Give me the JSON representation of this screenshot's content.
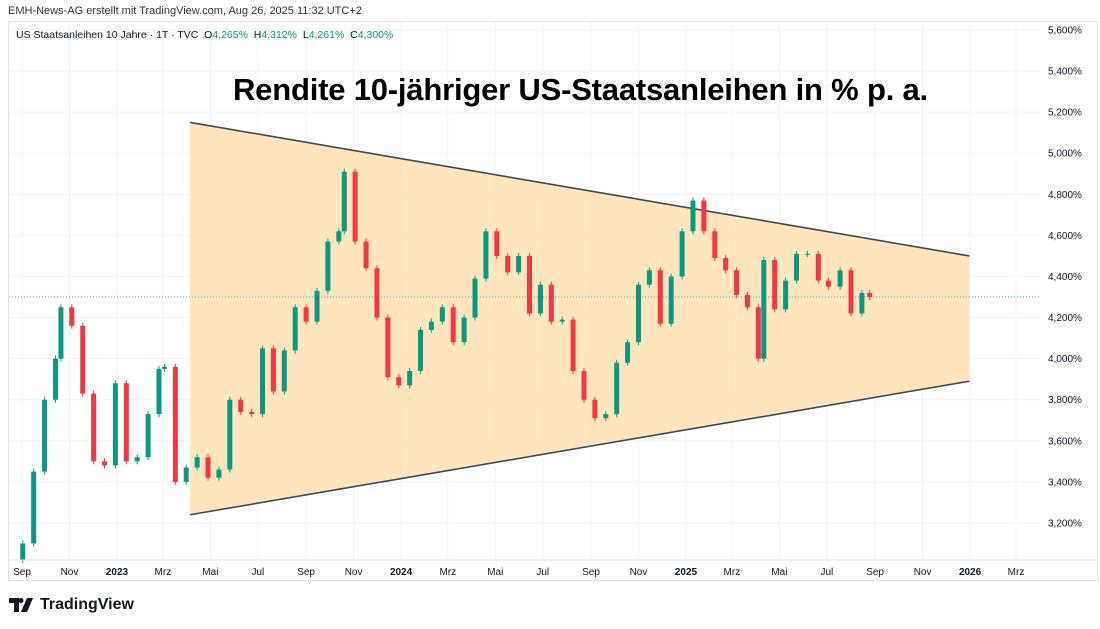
{
  "header": {
    "credit": "EMH-News-AG erstellt mit TradingView.com, Aug 26, 2025 11:32 UTC+2",
    "symbol": "US Staatsanleihen 10 Jahre · 1T · TVC",
    "ohlc": [
      {
        "label": "O",
        "value": "4,265%"
      },
      {
        "label": "H",
        "value": "4,312%"
      },
      {
        "label": "L",
        "value": "4,261%"
      },
      {
        "label": "C",
        "value": "4,300%"
      }
    ]
  },
  "footer": {
    "logo": "TradingView"
  },
  "colors": {
    "up": "#089981",
    "down": "#f23645",
    "triangle_fill": "#ffe0b2",
    "triangle_line": "#434651",
    "grid": "#f0f3fa"
  },
  "chart_data": {
    "type": "candlestick",
    "title": "Rendite 10-jähriger US-Staatsanleihen in % p. a.",
    "ylim": [
      3.0,
      5.65
    ],
    "y_ticks": [
      "5,600%",
      "5,400%",
      "5,200%",
      "5,000%",
      "4,800%",
      "4,600%",
      "4,400%",
      "4,200%",
      "4,000%",
      "3,800%",
      "3,600%",
      "3,400%",
      "3,200%"
    ],
    "y_tick_values": [
      5.6,
      5.4,
      5.2,
      5.0,
      4.8,
      4.6,
      4.4,
      4.2,
      4.0,
      3.8,
      3.6,
      3.4,
      3.2
    ],
    "x_ticks": [
      {
        "label": "Sep",
        "date": "2022-09-01"
      },
      {
        "label": "Nov",
        "date": "2022-11-01"
      },
      {
        "label": "2023",
        "date": "2023-01-01",
        "year": true
      },
      {
        "label": "Mrz",
        "date": "2023-03-01"
      },
      {
        "label": "Mai",
        "date": "2023-05-01"
      },
      {
        "label": "Jul",
        "date": "2023-07-01"
      },
      {
        "label": "Sep",
        "date": "2023-09-01"
      },
      {
        "label": "Nov",
        "date": "2023-11-01"
      },
      {
        "label": "2024",
        "date": "2024-01-01",
        "year": true
      },
      {
        "label": "Mrz",
        "date": "2024-03-01"
      },
      {
        "label": "Mai",
        "date": "2024-05-01"
      },
      {
        "label": "Jul",
        "date": "2024-07-01"
      },
      {
        "label": "Sep",
        "date": "2024-09-01"
      },
      {
        "label": "Nov",
        "date": "2024-11-01"
      },
      {
        "label": "2025",
        "date": "2025-01-01",
        "year": true
      },
      {
        "label": "Mrz",
        "date": "2025-03-01"
      },
      {
        "label": "Mai",
        "date": "2025-05-01"
      },
      {
        "label": "Jul",
        "date": "2025-07-01"
      },
      {
        "label": "Sep",
        "date": "2025-09-01"
      },
      {
        "label": "Nov",
        "date": "2025-11-01"
      },
      {
        "label": "2026",
        "date": "2026-01-01",
        "year": true
      },
      {
        "label": "Mrz",
        "date": "2026-03-01"
      }
    ],
    "closes": [
      [
        "2022-09-02",
        3.1
      ],
      [
        "2022-09-16",
        3.45
      ],
      [
        "2022-09-30",
        3.8
      ],
      [
        "2022-10-14",
        4.0
      ],
      [
        "2022-10-21",
        4.25
      ],
      [
        "2022-11-04",
        4.16
      ],
      [
        "2022-11-18",
        3.83
      ],
      [
        "2022-12-02",
        3.5
      ],
      [
        "2022-12-16",
        3.48
      ],
      [
        "2022-12-30",
        3.88
      ],
      [
        "2023-01-13",
        3.5
      ],
      [
        "2023-01-27",
        3.52
      ],
      [
        "2023-02-10",
        3.73
      ],
      [
        "2023-02-24",
        3.95
      ],
      [
        "2023-03-03",
        3.96
      ],
      [
        "2023-03-17",
        3.4
      ],
      [
        "2023-03-31",
        3.47
      ],
      [
        "2023-04-14",
        3.52
      ],
      [
        "2023-04-28",
        3.42
      ],
      [
        "2023-05-12",
        3.46
      ],
      [
        "2023-05-26",
        3.8
      ],
      [
        "2023-06-09",
        3.74
      ],
      [
        "2023-06-23",
        3.73
      ],
      [
        "2023-07-07",
        4.05
      ],
      [
        "2023-07-21",
        3.84
      ],
      [
        "2023-08-04",
        4.04
      ],
      [
        "2023-08-18",
        4.25
      ],
      [
        "2023-09-01",
        4.18
      ],
      [
        "2023-09-15",
        4.33
      ],
      [
        "2023-09-29",
        4.57
      ],
      [
        "2023-10-13",
        4.62
      ],
      [
        "2023-10-20",
        4.91
      ],
      [
        "2023-11-03",
        4.57
      ],
      [
        "2023-11-17",
        4.44
      ],
      [
        "2023-12-01",
        4.2
      ],
      [
        "2023-12-15",
        3.91
      ],
      [
        "2023-12-29",
        3.87
      ],
      [
        "2024-01-12",
        3.94
      ],
      [
        "2024-01-26",
        4.14
      ],
      [
        "2024-02-09",
        4.18
      ],
      [
        "2024-02-23",
        4.25
      ],
      [
        "2024-03-08",
        4.08
      ],
      [
        "2024-03-22",
        4.2
      ],
      [
        "2024-04-05",
        4.39
      ],
      [
        "2024-04-19",
        4.62
      ],
      [
        "2024-05-03",
        4.5
      ],
      [
        "2024-05-17",
        4.42
      ],
      [
        "2024-05-31",
        4.5
      ],
      [
        "2024-06-14",
        4.22
      ],
      [
        "2024-06-28",
        4.36
      ],
      [
        "2024-07-12",
        4.18
      ],
      [
        "2024-07-26",
        4.19
      ],
      [
        "2024-08-09",
        3.94
      ],
      [
        "2024-08-23",
        3.8
      ],
      [
        "2024-09-06",
        3.71
      ],
      [
        "2024-09-20",
        3.73
      ],
      [
        "2024-10-04",
        3.98
      ],
      [
        "2024-10-18",
        4.08
      ],
      [
        "2024-11-01",
        4.36
      ],
      [
        "2024-11-15",
        4.43
      ],
      [
        "2024-11-29",
        4.17
      ],
      [
        "2024-12-13",
        4.4
      ],
      [
        "2024-12-27",
        4.62
      ],
      [
        "2025-01-10",
        4.77
      ],
      [
        "2025-01-24",
        4.62
      ],
      [
        "2025-02-07",
        4.49
      ],
      [
        "2025-02-21",
        4.43
      ],
      [
        "2025-03-07",
        4.31
      ],
      [
        "2025-03-21",
        4.25
      ],
      [
        "2025-04-04",
        4.0
      ],
      [
        "2025-04-11",
        4.48
      ],
      [
        "2025-04-25",
        4.24
      ],
      [
        "2025-05-09",
        4.38
      ],
      [
        "2025-05-23",
        4.51
      ],
      [
        "2025-06-06",
        4.51
      ],
      [
        "2025-06-20",
        4.38
      ],
      [
        "2025-07-03",
        4.35
      ],
      [
        "2025-07-18",
        4.43
      ],
      [
        "2025-08-01",
        4.22
      ],
      [
        "2025-08-15",
        4.32
      ],
      [
        "2025-08-25",
        4.3
      ]
    ],
    "annotations": {
      "triangle_upper": [
        [
          "2023-04-05",
          5.15
        ],
        [
          "2025-12-31",
          4.5
        ]
      ],
      "triangle_lower": [
        [
          "2023-04-05",
          3.24
        ],
        [
          "2025-12-31",
          3.89
        ]
      ],
      "last_price_line": 4.3
    },
    "grid": true
  }
}
